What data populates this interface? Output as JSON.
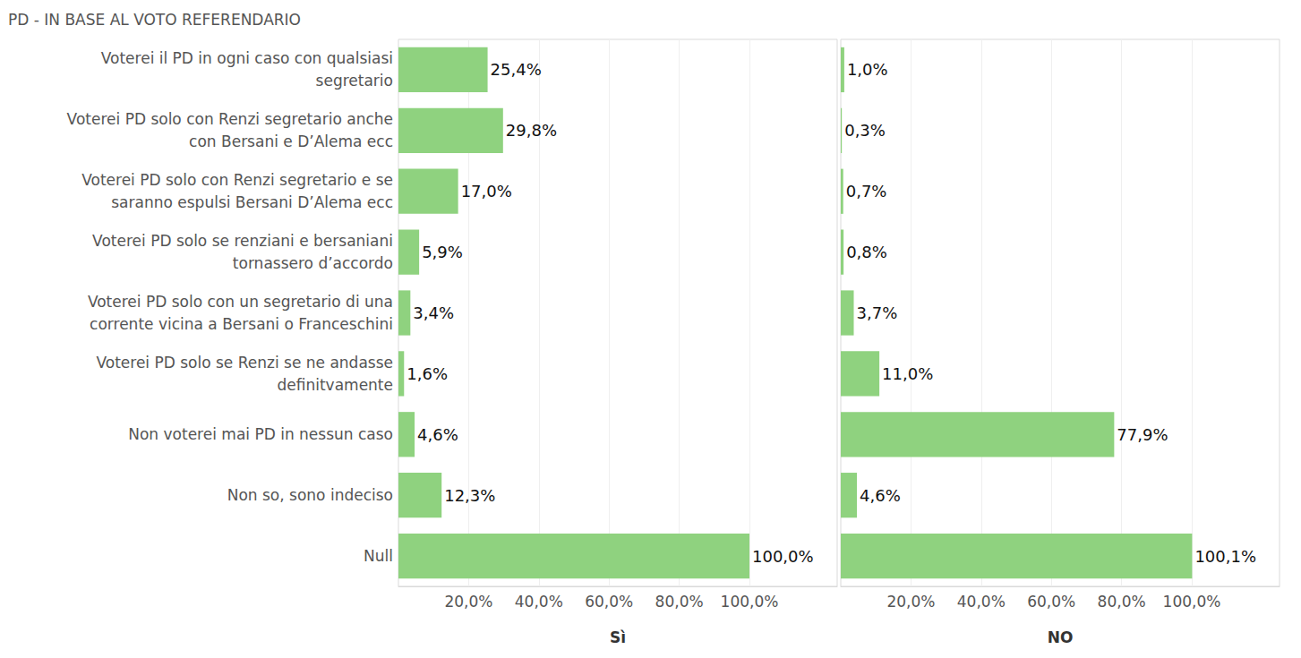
{
  "chart_data": {
    "type": "bar",
    "title": "PD - IN BASE AL VOTO REFERENDARIO",
    "orientation": "horizontal",
    "data_labels": true,
    "grid": true,
    "color": "#8fd27f",
    "categories": [
      "Voterei il PD in ogni caso con qualsiasi\nsegretario",
      "Voterei PD solo con Renzi segretario anche\ncon Bersani e D’Alema ecc",
      "Voterei PD solo con Renzi segretario e se\nsaranno espulsi Bersani D’Alema ecc",
      "Voterei PD solo se renziani e bersaniani\ntornassero d’accordo",
      "Voterei PD solo con un segretario di una\ncorrente vicina a Bersani o Franceschini",
      "Voterei PD solo se Renzi se ne andasse\ndefinitvamente",
      "Non voterei mai PD in nessun caso",
      "Non so, sono indeciso",
      "Null"
    ],
    "series": [
      {
        "name": "Sì",
        "values": [
          25.4,
          29.8,
          17.0,
          5.9,
          3.4,
          1.6,
          4.6,
          12.3,
          100.0
        ],
        "value_labels": [
          "25,4%",
          "29,8%",
          "17,0%",
          "5,9%",
          "3,4%",
          "1,6%",
          "4,6%",
          "12,3%",
          "100,0%"
        ]
      },
      {
        "name": "NO",
        "values": [
          1.0,
          0.3,
          0.7,
          0.8,
          3.7,
          11.0,
          77.9,
          4.6,
          100.1
        ],
        "value_labels": [
          "1,0%",
          "0,3%",
          "0,7%",
          "0,8%",
          "3,7%",
          "11,0%",
          "77,9%",
          "4,6%",
          "100,1%"
        ]
      }
    ],
    "xlim": [
      0,
      125
    ],
    "xticks": [
      {
        "value": 20,
        "label": "20,0%"
      },
      {
        "value": 40,
        "label": "40,0%"
      },
      {
        "value": 60,
        "label": "60,0%"
      },
      {
        "value": 80,
        "label": "80,0%"
      },
      {
        "value": 100,
        "label": "100,0%"
      }
    ]
  }
}
